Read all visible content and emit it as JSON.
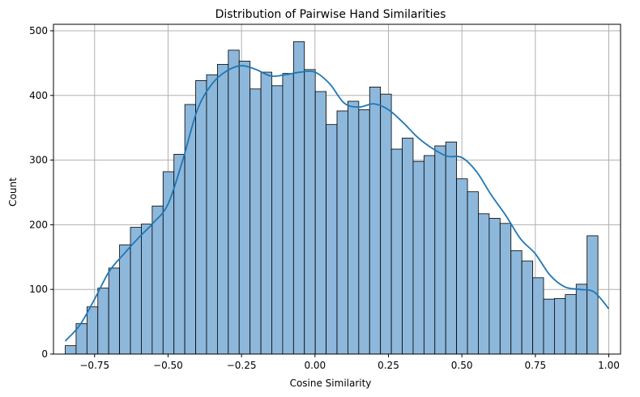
{
  "chart_data": {
    "type": "bar",
    "subtype": "histogram-with-kde",
    "title": "Distribution of Pairwise Hand Similarities",
    "xlabel": "Cosine Similarity",
    "ylabel": "Count",
    "xlim": [
      -0.89,
      1.04
    ],
    "ylim": [
      0,
      510
    ],
    "grid": true,
    "x_ticks": [
      -0.75,
      -0.5,
      -0.25,
      0.0,
      0.25,
      0.5,
      0.75,
      1.0
    ],
    "x_tick_labels": [
      "−0.75",
      "−0.50",
      "−0.25",
      "0.00",
      "0.25",
      "0.50",
      "0.75",
      "1.00"
    ],
    "y_ticks": [
      0,
      100,
      200,
      300,
      400,
      500
    ],
    "y_tick_labels": [
      "0",
      "100",
      "200",
      "300",
      "400",
      "500"
    ],
    "bin_start": -0.85,
    "bin_width": 0.037,
    "counts": [
      13,
      47,
      73,
      102,
      133,
      169,
      196,
      201,
      229,
      282,
      309,
      386,
      423,
      432,
      448,
      470,
      453,
      410,
      436,
      415,
      434,
      483,
      440,
      406,
      355,
      376,
      391,
      378,
      413,
      402,
      317,
      334,
      298,
      307,
      322,
      328,
      271,
      251,
      217,
      210,
      202,
      160,
      144,
      118,
      85,
      86,
      92,
      108,
      183
    ],
    "kde": {
      "x": [
        -0.85,
        -0.8,
        -0.75,
        -0.7,
        -0.65,
        -0.6,
        -0.55,
        -0.5,
        -0.45,
        -0.4,
        -0.35,
        -0.3,
        -0.25,
        -0.2,
        -0.15,
        -0.1,
        -0.05,
        0.0,
        0.05,
        0.1,
        0.15,
        0.2,
        0.25,
        0.3,
        0.35,
        0.4,
        0.45,
        0.5,
        0.55,
        0.6,
        0.65,
        0.7,
        0.75,
        0.8,
        0.85,
        0.9,
        0.95,
        1.0
      ],
      "y": [
        20,
        45,
        85,
        128,
        155,
        180,
        203,
        232,
        300,
        378,
        418,
        438,
        446,
        440,
        430,
        432,
        436,
        436,
        418,
        388,
        382,
        387,
        378,
        358,
        335,
        318,
        306,
        304,
        282,
        246,
        214,
        178,
        155,
        122,
        104,
        100,
        96,
        70
      ]
    },
    "colors": {
      "bar_fill": "#8db8dc",
      "bar_edge": "#000000",
      "kde_line": "#1f77b4",
      "grid": "#b0b0b0"
    }
  }
}
